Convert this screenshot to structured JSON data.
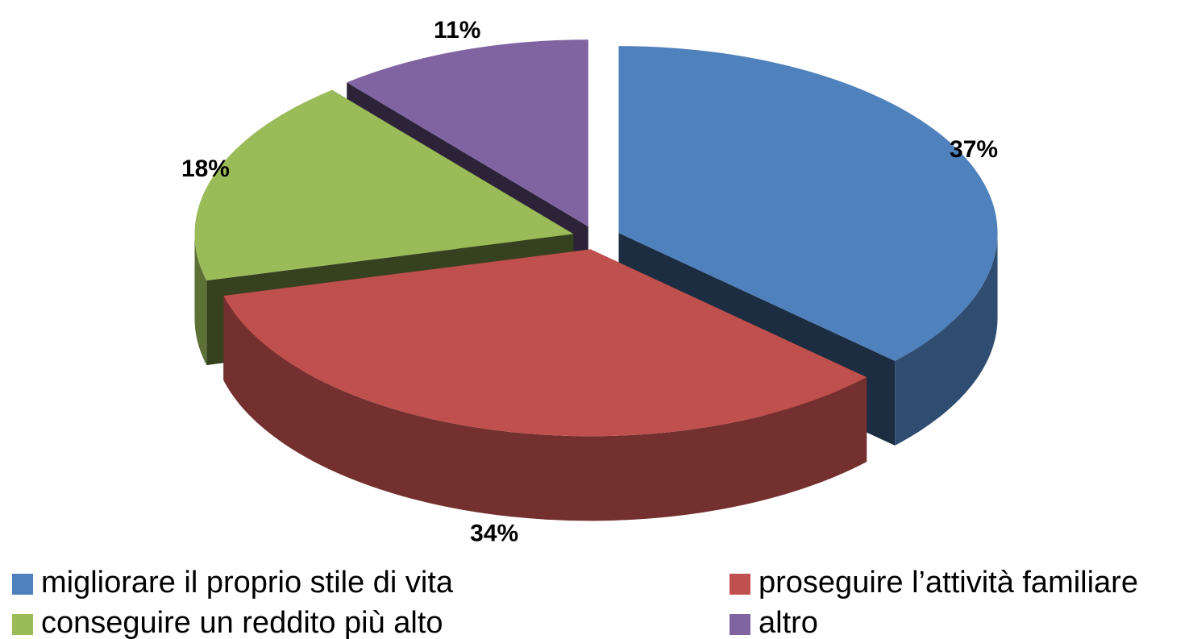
{
  "chart_data": {
    "type": "pie",
    "categories": [
      "migliorare il proprio stile di vita",
      "proseguire l’attività familiare",
      "conseguire un reddito più alto",
      "altro"
    ],
    "values": [
      37,
      34,
      18,
      11
    ],
    "value_labels": [
      "37%",
      "34%",
      "18%",
      "11%"
    ],
    "colors": [
      "#4f81bd",
      "#c0504d",
      "#9bbb59",
      "#8064a2"
    ],
    "legend": "bottom"
  }
}
